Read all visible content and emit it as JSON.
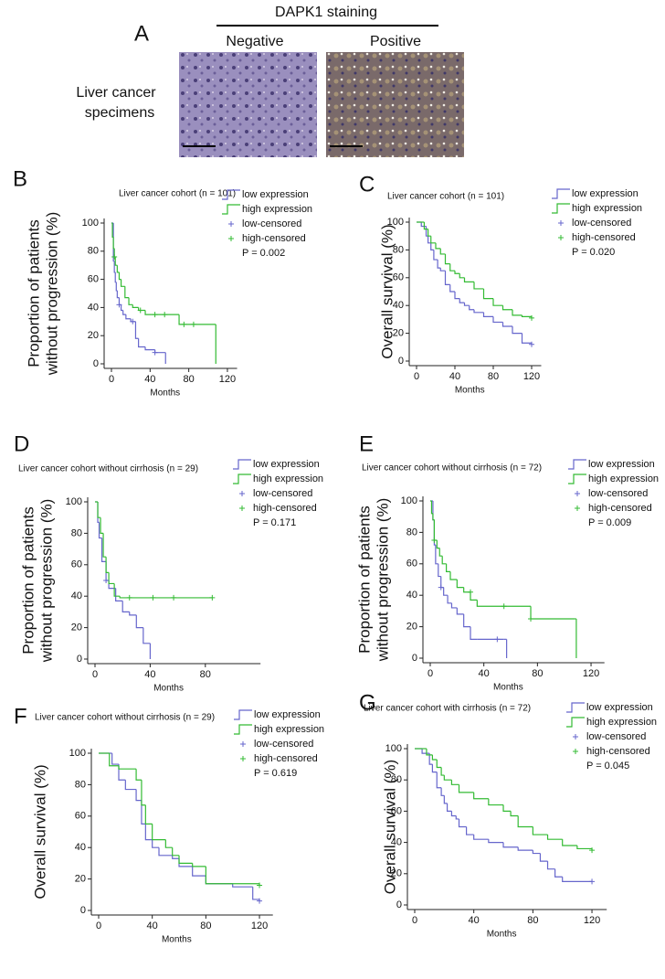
{
  "panel_a": {
    "label": "A",
    "heading": "DAPK1 staining",
    "columns": [
      "Negative",
      "Positive"
    ],
    "row_label": [
      "Liver cancer",
      "specimens"
    ]
  },
  "chart_data": [
    {
      "type": "line",
      "panel": "B",
      "title": "Liver cancer cohort (n = 101)",
      "x_label": "Months",
      "y_label": [
        "Proportion of patients",
        "without progression (%)"
      ],
      "annotation": "P = 0.002",
      "xlim": [
        0,
        130
      ],
      "ylim": [
        0,
        100
      ],
      "xticks": [
        0,
        40,
        80,
        120
      ],
      "yticks": [
        0,
        20,
        40,
        60,
        80,
        100
      ],
      "series": [
        {
          "name": "low expression",
          "color": "#6666cc",
          "x": [
            0,
            2,
            3,
            4,
            5,
            6,
            8,
            10,
            12,
            15,
            20,
            25,
            28,
            35,
            45,
            56
          ],
          "values": [
            100,
            73,
            65,
            58,
            52,
            47,
            42,
            38,
            35,
            32,
            30,
            18,
            12,
            10,
            8,
            0
          ]
        },
        {
          "name": "high expression",
          "color": "#33bb33",
          "x": [
            0,
            1,
            2,
            3,
            4,
            6,
            8,
            10,
            14,
            18,
            22,
            28,
            35,
            70,
            108
          ],
          "values": [
            100,
            90,
            82,
            76,
            70,
            65,
            60,
            55,
            47,
            42,
            40,
            38,
            35,
            28,
            0
          ]
        },
        {
          "name": "low-censored",
          "color": "#6666cc",
          "marker": "+",
          "x": [
            8,
            22,
            45
          ],
          "values": [
            42,
            30,
            8
          ]
        },
        {
          "name": "high-censored",
          "color": "#33bb33",
          "marker": "+",
          "x": [
            3,
            30,
            45,
            55,
            75,
            85
          ],
          "values": [
            76,
            38,
            35,
            35,
            28,
            28
          ]
        }
      ]
    },
    {
      "type": "line",
      "panel": "C",
      "title": "Liver cancer cohort (n = 101)",
      "x_label": "Months",
      "y_label": [
        "Overall survival (%)"
      ],
      "annotation": "P = 0.020",
      "xlim": [
        0,
        130
      ],
      "ylim": [
        0,
        100
      ],
      "xticks": [
        0,
        40,
        80,
        120
      ],
      "yticks": [
        0,
        20,
        40,
        60,
        80,
        100
      ],
      "series": [
        {
          "name": "low expression",
          "color": "#6666cc",
          "x": [
            0,
            5,
            10,
            12,
            15,
            18,
            22,
            25,
            30,
            35,
            40,
            45,
            50,
            55,
            60,
            70,
            80,
            90,
            100,
            110,
            120
          ],
          "values": [
            100,
            97,
            90,
            85,
            80,
            73,
            67,
            65,
            55,
            50,
            45,
            42,
            40,
            37,
            35,
            32,
            28,
            25,
            20,
            13,
            12
          ]
        },
        {
          "name": "high expression",
          "color": "#33bb33",
          "x": [
            0,
            8,
            12,
            15,
            20,
            25,
            30,
            35,
            40,
            45,
            50,
            60,
            70,
            80,
            90,
            100,
            110,
            120
          ],
          "values": [
            100,
            95,
            90,
            85,
            81,
            77,
            70,
            65,
            63,
            60,
            57,
            52,
            45,
            40,
            37,
            33,
            32,
            31
          ]
        },
        {
          "name": "low-censored",
          "color": "#6666cc",
          "marker": "+",
          "x": [
            120
          ],
          "values": [
            12
          ]
        },
        {
          "name": "high-censored",
          "color": "#33bb33",
          "marker": "+",
          "x": [
            120
          ],
          "values": [
            31
          ]
        }
      ]
    },
    {
      "type": "line",
      "panel": "D",
      "title": "Liver cancer cohort without cirrhosis (n = 29)",
      "x_label": "Months",
      "y_label": [
        "Proportion of patients",
        "without progression (%)"
      ],
      "annotation": "P = 0.171",
      "xlim": [
        0,
        120
      ],
      "ylim": [
        0,
        100
      ],
      "xticks": [
        0,
        40,
        80
      ],
      "yticks": [
        0,
        20,
        40,
        60,
        80,
        100
      ],
      "series": [
        {
          "name": "low expression",
          "color": "#6666cc",
          "x": [
            0,
            2,
            3,
            5,
            8,
            10,
            15,
            20,
            25,
            30,
            35,
            40
          ],
          "values": [
            100,
            87,
            77,
            62,
            50,
            45,
            37,
            30,
            28,
            20,
            10,
            0
          ]
        },
        {
          "name": "high expression",
          "color": "#33bb33",
          "x": [
            0,
            2,
            4,
            6,
            8,
            10,
            14,
            18,
            85
          ],
          "values": [
            100,
            90,
            80,
            65,
            55,
            48,
            40,
            39,
            39
          ]
        },
        {
          "name": "low-censored",
          "color": "#6666cc",
          "marker": "+",
          "x": [
            8
          ],
          "values": [
            50
          ]
        },
        {
          "name": "high-censored",
          "color": "#33bb33",
          "marker": "+",
          "x": [
            25,
            42,
            57,
            85
          ],
          "values": [
            39,
            39,
            39,
            39
          ]
        }
      ]
    },
    {
      "type": "line",
      "panel": "E",
      "title": "Liver cancer cohort without cirrhosis (n = 72)",
      "x_label": "Months",
      "y_label": [
        "Proportion of patients",
        "without progression (%)"
      ],
      "annotation": "P = 0.009",
      "xlim": [
        0,
        130
      ],
      "ylim": [
        0,
        100
      ],
      "xticks": [
        0,
        40,
        80,
        120
      ],
      "yticks": [
        0,
        20,
        40,
        60,
        80,
        100
      ],
      "series": [
        {
          "name": "low expression",
          "color": "#6666cc",
          "x": [
            0,
            2,
            3,
            4,
            6,
            8,
            10,
            13,
            16,
            20,
            25,
            30,
            35,
            55,
            57
          ],
          "values": [
            100,
            88,
            72,
            60,
            52,
            45,
            40,
            35,
            32,
            28,
            20,
            12,
            12,
            12,
            0
          ]
        },
        {
          "name": "high expression",
          "color": "#33bb33",
          "x": [
            0,
            1,
            2,
            3,
            5,
            7,
            9,
            12,
            15,
            20,
            25,
            30,
            35,
            60,
            75,
            108,
            109
          ],
          "values": [
            100,
            92,
            88,
            75,
            70,
            65,
            60,
            55,
            50,
            45,
            42,
            37,
            33,
            33,
            25,
            25,
            0
          ]
        },
        {
          "name": "low-censored",
          "color": "#6666cc",
          "marker": "+",
          "x": [
            8,
            50
          ],
          "values": [
            45,
            12
          ]
        },
        {
          "name": "high-censored",
          "color": "#33bb33",
          "marker": "+",
          "x": [
            3,
            30,
            55,
            75
          ],
          "values": [
            75,
            42,
            33,
            25
          ]
        }
      ]
    },
    {
      "type": "line",
      "panel": "F",
      "title": "Liver cancer cohort without cirrhosis (n = 29)",
      "x_label": "Months",
      "y_label": [
        "Overall survival (%)"
      ],
      "annotation": "P = 0.619",
      "xlim": [
        0,
        130
      ],
      "ylim": [
        0,
        100
      ],
      "xticks": [
        0,
        40,
        80,
        120
      ],
      "yticks": [
        0,
        20,
        40,
        60,
        80,
        100
      ],
      "series": [
        {
          "name": "low expression",
          "color": "#6666cc",
          "x": [
            0,
            10,
            15,
            20,
            28,
            32,
            35,
            40,
            45,
            55,
            60,
            70,
            80,
            100,
            115,
            120
          ],
          "values": [
            100,
            93,
            83,
            77,
            70,
            55,
            45,
            40,
            35,
            33,
            28,
            22,
            17,
            15,
            7,
            6
          ]
        },
        {
          "name": "high expression",
          "color": "#33bb33",
          "x": [
            0,
            8,
            15,
            28,
            32,
            35,
            40,
            50,
            55,
            60,
            70,
            80,
            120
          ],
          "values": [
            100,
            92,
            90,
            83,
            67,
            55,
            45,
            40,
            35,
            30,
            28,
            17,
            16
          ]
        },
        {
          "name": "low-censored",
          "color": "#6666cc",
          "marker": "+",
          "x": [
            120
          ],
          "values": [
            6
          ]
        },
        {
          "name": "high-censored",
          "color": "#33bb33",
          "marker": "+",
          "x": [
            120
          ],
          "values": [
            16
          ]
        }
      ]
    },
    {
      "type": "line",
      "panel": "G",
      "title": "Liver cancer cohort with cirrhosis (n = 72)",
      "x_label": "Months",
      "y_label": [
        "Overall survival (%)"
      ],
      "annotation": "P = 0.045",
      "xlim": [
        0,
        130
      ],
      "ylim": [
        0,
        100
      ],
      "xticks": [
        0,
        40,
        80,
        120
      ],
      "yticks": [
        0,
        20,
        40,
        60,
        80,
        100
      ],
      "series": [
        {
          "name": "low expression",
          "color": "#6666cc",
          "x": [
            0,
            5,
            10,
            12,
            15,
            18,
            20,
            22,
            25,
            28,
            30,
            35,
            40,
            50,
            60,
            70,
            80,
            85,
            90,
            95,
            100,
            120
          ],
          "values": [
            100,
            97,
            90,
            85,
            75,
            70,
            65,
            60,
            57,
            55,
            50,
            45,
            42,
            40,
            37,
            35,
            33,
            28,
            23,
            18,
            15,
            15
          ]
        },
        {
          "name": "high expression",
          "color": "#33bb33",
          "x": [
            0,
            8,
            12,
            15,
            18,
            20,
            25,
            30,
            40,
            50,
            60,
            65,
            70,
            80,
            90,
            100,
            110,
            120
          ],
          "values": [
            100,
            96,
            93,
            88,
            83,
            80,
            77,
            72,
            68,
            64,
            60,
            57,
            50,
            45,
            42,
            38,
            36,
            35
          ]
        },
        {
          "name": "low-censored",
          "color": "#6666cc",
          "marker": "+",
          "x": [
            120
          ],
          "values": [
            15
          ]
        },
        {
          "name": "high-censored",
          "color": "#33bb33",
          "marker": "+",
          "x": [
            120
          ],
          "values": [
            35
          ]
        }
      ]
    }
  ]
}
